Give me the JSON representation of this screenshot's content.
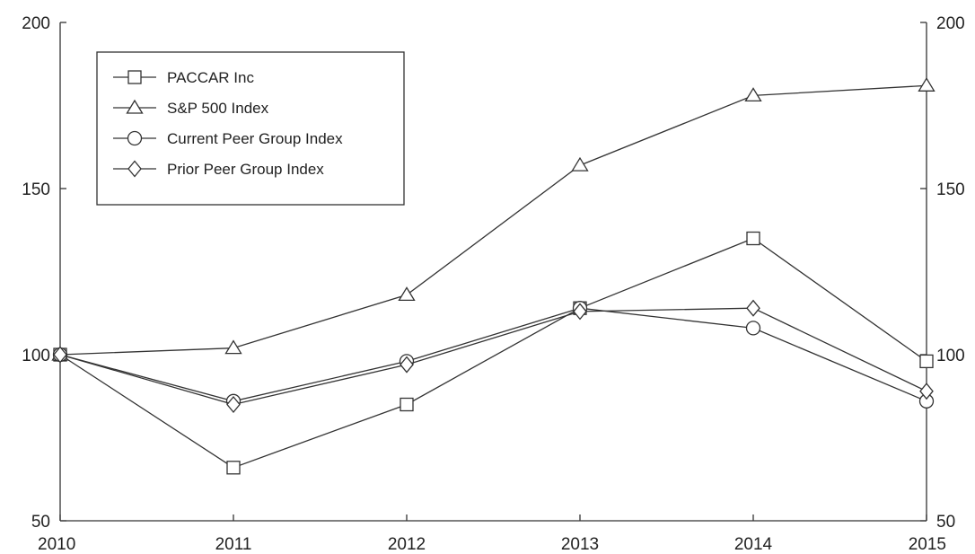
{
  "chart_data": {
    "type": "line",
    "title": "",
    "xlabel": "",
    "ylabel": "",
    "x": [
      "2010",
      "2011",
      "2012",
      "2013",
      "2014",
      "2015"
    ],
    "ylim": [
      50,
      200
    ],
    "yticks": [
      50,
      100,
      150,
      200
    ],
    "y_axis_both_sides": true,
    "grid": false,
    "legend_position": "top-left",
    "series": [
      {
        "name": "PACCAR Inc",
        "marker": "square",
        "values": [
          100,
          66,
          85,
          114,
          135,
          98
        ]
      },
      {
        "name": "S&P 500 Index",
        "marker": "triangle",
        "values": [
          100,
          102,
          118,
          157,
          178,
          181
        ]
      },
      {
        "name": "Current Peer Group Index",
        "marker": "circle",
        "values": [
          100,
          86,
          98,
          114,
          108,
          86
        ]
      },
      {
        "name": "Prior Peer Group Index",
        "marker": "diamond",
        "values": [
          100,
          85,
          97,
          113,
          114,
          89
        ]
      }
    ]
  }
}
